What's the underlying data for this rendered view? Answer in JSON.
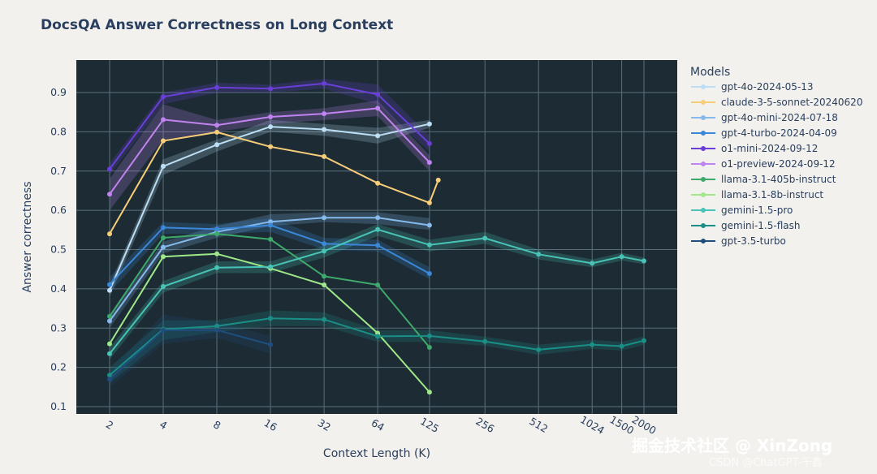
{
  "chart_data": {
    "type": "line",
    "title": "DocsQA Answer Correctness on Long Context",
    "xlabel": "Context Length (K)",
    "ylabel": "Answer correctness",
    "x_scale": "log",
    "x_ticks": [
      2,
      4,
      8,
      16,
      32,
      64,
      125,
      256,
      512,
      1024,
      1500,
      2000
    ],
    "y_ticks": [
      0.1,
      0.2,
      0.3,
      0.4,
      0.5,
      0.6,
      0.7,
      0.8,
      0.9
    ],
    "ylim": [
      0.08,
      0.99
    ],
    "legend_title": "Models",
    "legend_position": "right",
    "plot_background": "#1d2c34",
    "grid": true,
    "series": [
      {
        "name": "gpt-4o-2024-05-13",
        "color": "#bcdff5",
        "points": [
          [
            2,
            0.396
          ],
          [
            4,
            0.712
          ],
          [
            8,
            0.767
          ],
          [
            16,
            0.813
          ],
          [
            32,
            0.806
          ],
          [
            64,
            0.79
          ],
          [
            125,
            0.82
          ]
        ],
        "band": [
          [
            2,
            0.38,
            0.41
          ],
          [
            4,
            0.69,
            0.73
          ],
          [
            8,
            0.75,
            0.78
          ],
          [
            16,
            0.8,
            0.83
          ],
          [
            32,
            0.79,
            0.82
          ],
          [
            64,
            0.77,
            0.81
          ],
          [
            125,
            0.81,
            0.83
          ]
        ]
      },
      {
        "name": "claude-3-5-sonnet-20240620",
        "color": "#f7cd7a",
        "points": [
          [
            2,
            0.54
          ],
          [
            4,
            0.777
          ],
          [
            8,
            0.799
          ],
          [
            16,
            0.762
          ],
          [
            32,
            0.737
          ],
          [
            64,
            0.669
          ],
          [
            125,
            0.619
          ],
          [
            140,
            0.677
          ]
        ]
      },
      {
        "name": "gpt-4o-mini-2024-07-18",
        "color": "#86b9ec",
        "points": [
          [
            2,
            0.318
          ],
          [
            4,
            0.506
          ],
          [
            8,
            0.545
          ],
          [
            16,
            0.571
          ],
          [
            32,
            0.581
          ],
          [
            64,
            0.581
          ],
          [
            125,
            0.562
          ]
        ],
        "band": [
          [
            2,
            0.3,
            0.33
          ],
          [
            4,
            0.49,
            0.52
          ],
          [
            8,
            0.53,
            0.56
          ],
          [
            16,
            0.56,
            0.59
          ],
          [
            32,
            0.57,
            0.595
          ],
          [
            64,
            0.565,
            0.595
          ],
          [
            125,
            0.55,
            0.58
          ]
        ]
      },
      {
        "name": "gpt-4-turbo-2024-04-09",
        "color": "#3b87d8",
        "points": [
          [
            2,
            0.411
          ],
          [
            4,
            0.556
          ],
          [
            8,
            0.552
          ],
          [
            16,
            0.562
          ],
          [
            32,
            0.515
          ],
          [
            64,
            0.511
          ],
          [
            125,
            0.439
          ]
        ],
        "band": [
          [
            2,
            0.39,
            0.43
          ],
          [
            4,
            0.54,
            0.57
          ],
          [
            8,
            0.54,
            0.565
          ],
          [
            16,
            0.545,
            0.58
          ],
          [
            32,
            0.5,
            0.53
          ],
          [
            64,
            0.495,
            0.525
          ],
          [
            125,
            0.425,
            0.455
          ]
        ]
      },
      {
        "name": "o1-mini-2024-09-12",
        "color": "#6a3fd8",
        "points": [
          [
            2,
            0.705
          ],
          [
            4,
            0.889
          ],
          [
            8,
            0.913
          ],
          [
            16,
            0.91
          ],
          [
            32,
            0.923
          ],
          [
            64,
            0.895
          ],
          [
            125,
            0.77
          ]
        ],
        "band": [
          [
            2,
            0.69,
            0.72
          ],
          [
            4,
            0.87,
            0.9
          ],
          [
            8,
            0.9,
            0.925
          ],
          [
            16,
            0.9,
            0.92
          ],
          [
            32,
            0.91,
            0.935
          ],
          [
            64,
            0.87,
            0.92
          ],
          [
            125,
            0.75,
            0.79
          ]
        ]
      },
      {
        "name": "o1-preview-2024-09-12",
        "color": "#c183f0",
        "points": [
          [
            2,
            0.641
          ],
          [
            4,
            0.831
          ],
          [
            8,
            0.817
          ],
          [
            16,
            0.838
          ],
          [
            32,
            0.846
          ],
          [
            64,
            0.86
          ],
          [
            125,
            0.722
          ]
        ],
        "band": [
          [
            2,
            0.6,
            0.68
          ],
          [
            4,
            0.78,
            0.87
          ],
          [
            8,
            0.8,
            0.83
          ],
          [
            16,
            0.82,
            0.85
          ],
          [
            32,
            0.83,
            0.86
          ],
          [
            64,
            0.84,
            0.88
          ],
          [
            125,
            0.7,
            0.74
          ]
        ]
      },
      {
        "name": "llama-3.1-405b-instruct",
        "color": "#3da96a",
        "points": [
          [
            2,
            0.33
          ],
          [
            4,
            0.53
          ],
          [
            8,
            0.54
          ],
          [
            16,
            0.526
          ],
          [
            32,
            0.432
          ],
          [
            64,
            0.41
          ],
          [
            125,
            0.251
          ]
        ]
      },
      {
        "name": "llama-3.1-8b-instruct",
        "color": "#9ee889",
        "points": [
          [
            2,
            0.26
          ],
          [
            4,
            0.482
          ],
          [
            8,
            0.489
          ],
          [
            16,
            0.452
          ],
          [
            32,
            0.41
          ],
          [
            64,
            0.287
          ],
          [
            125,
            0.137
          ]
        ]
      },
      {
        "name": "gemini-1.5-pro",
        "color": "#48c4b7",
        "points": [
          [
            2,
            0.235
          ],
          [
            4,
            0.406
          ],
          [
            8,
            0.454
          ],
          [
            16,
            0.456
          ],
          [
            32,
            0.496
          ],
          [
            64,
            0.551
          ],
          [
            125,
            0.512
          ],
          [
            256,
            0.529
          ],
          [
            512,
            0.488
          ],
          [
            1024,
            0.465
          ],
          [
            1500,
            0.482
          ],
          [
            2000,
            0.471
          ]
        ],
        "band": [
          [
            2,
            0.22,
            0.25
          ],
          [
            4,
            0.39,
            0.42
          ],
          [
            8,
            0.44,
            0.47
          ],
          [
            16,
            0.44,
            0.47
          ],
          [
            32,
            0.48,
            0.51
          ],
          [
            64,
            0.535,
            0.565
          ],
          [
            125,
            0.495,
            0.525
          ],
          [
            256,
            0.515,
            0.545
          ],
          [
            512,
            0.475,
            0.5
          ],
          [
            1024,
            0.455,
            0.475
          ],
          [
            1500,
            0.472,
            0.492
          ],
          [
            2000,
            0.463,
            0.48
          ]
        ]
      },
      {
        "name": "gemini-1.5-flash",
        "color": "#1a8f87",
        "points": [
          [
            2,
            0.18
          ],
          [
            4,
            0.297
          ],
          [
            8,
            0.305
          ],
          [
            16,
            0.325
          ],
          [
            32,
            0.322
          ],
          [
            64,
            0.279
          ],
          [
            125,
            0.28
          ],
          [
            256,
            0.266
          ],
          [
            512,
            0.245
          ],
          [
            1024,
            0.258
          ],
          [
            1500,
            0.254
          ],
          [
            2000,
            0.268
          ]
        ],
        "band": [
          [
            2,
            0.16,
            0.2
          ],
          [
            4,
            0.27,
            0.32
          ],
          [
            8,
            0.29,
            0.32
          ],
          [
            16,
            0.305,
            0.345
          ],
          [
            32,
            0.305,
            0.34
          ],
          [
            64,
            0.265,
            0.295
          ],
          [
            125,
            0.265,
            0.295
          ],
          [
            256,
            0.255,
            0.278
          ],
          [
            512,
            0.232,
            0.258
          ],
          [
            1024,
            0.247,
            0.27
          ],
          [
            1500,
            0.243,
            0.265
          ],
          [
            2000,
            0.257,
            0.279
          ]
        ]
      },
      {
        "name": "gpt-3.5-turbo",
        "color": "#1f4e7e",
        "points": [
          [
            2,
            0.17
          ],
          [
            4,
            0.295
          ],
          [
            8,
            0.295
          ],
          [
            16,
            0.258
          ]
        ],
        "band": [
          [
            2,
            0.15,
            0.19
          ],
          [
            4,
            0.26,
            0.335
          ],
          [
            8,
            0.275,
            0.315
          ],
          [
            16,
            0.235,
            0.28
          ]
        ]
      }
    ]
  },
  "watermark": {
    "primary": "掘金技术社区 @ XinZong",
    "secondary": "CSDN @ChatGPT-千鑫"
  }
}
